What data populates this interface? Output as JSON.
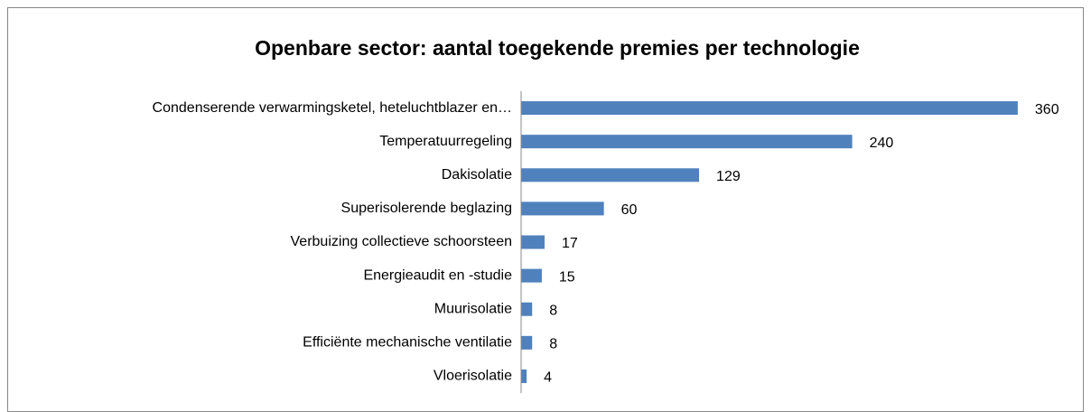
{
  "chart_data": {
    "type": "bar",
    "orientation": "horizontal",
    "title": "Openbare sector: aantal toegekende premies per technologie",
    "categories": [
      "Condenserende verwarmingsketel, heteluchtblazer en…",
      "Temperatuurregeling",
      "Dakisolatie",
      "Superisolerende beglazing",
      "Verbuizing collectieve schoorsteen",
      "Energieaudit en -studie",
      "Muurisolatie",
      "Efficiënte mechanische ventilatie",
      "Vloerisolatie"
    ],
    "values": [
      360,
      240,
      129,
      60,
      17,
      15,
      8,
      8,
      4
    ],
    "color": "#4f81bd",
    "xlim": [
      0,
      400
    ]
  }
}
